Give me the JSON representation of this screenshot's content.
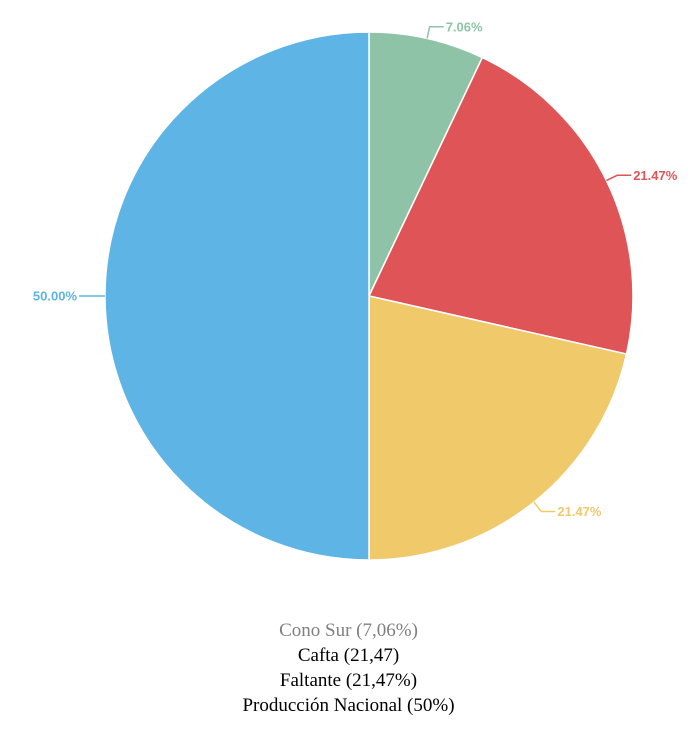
{
  "chart_data": {
    "type": "pie",
    "slices": [
      {
        "label": "7.06%",
        "value": 7.06,
        "color": "#8fc3a8"
      },
      {
        "label": "21.47%",
        "value": 21.47,
        "color": "#de5457"
      },
      {
        "label": "21.47%",
        "value": 21.47,
        "color": "#efc96a"
      },
      {
        "label": "50.00%",
        "value": 50.0,
        "color": "#5db4e5"
      }
    ],
    "start_angle_deg": 0,
    "direction": "clockwise"
  },
  "legend": {
    "items": [
      {
        "text": "Cono Sur (7,06%)",
        "color": "#808080"
      },
      {
        "text": "Cafta (21,47)",
        "color": "#000000"
      },
      {
        "text": "Faltante (21,47%)",
        "color": "#000000"
      },
      {
        "text": "Producción Nacional (50%)",
        "color": "#000000"
      }
    ]
  }
}
